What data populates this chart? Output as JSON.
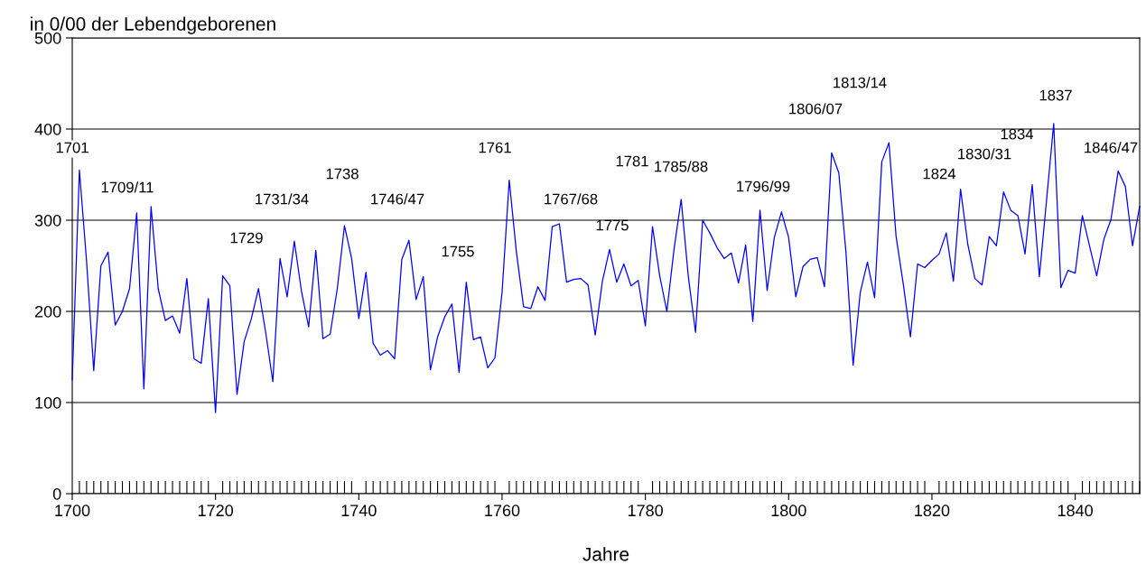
{
  "chart_data": {
    "type": "line",
    "title": "in 0/00 der Lebendgeborenen",
    "xlabel": "Jahre",
    "x": [
      1700,
      1701,
      1702,
      1703,
      1704,
      1705,
      1706,
      1707,
      1708,
      1709,
      1710,
      1711,
      1712,
      1713,
      1714,
      1715,
      1716,
      1717,
      1718,
      1719,
      1720,
      1721,
      1722,
      1723,
      1724,
      1725,
      1726,
      1727,
      1728,
      1729,
      1730,
      1731,
      1732,
      1733,
      1734,
      1735,
      1736,
      1737,
      1738,
      1739,
      1740,
      1741,
      1742,
      1743,
      1744,
      1745,
      1746,
      1747,
      1748,
      1749,
      1750,
      1751,
      1752,
      1753,
      1754,
      1755,
      1756,
      1757,
      1758,
      1759,
      1760,
      1761,
      1762,
      1763,
      1764,
      1765,
      1766,
      1767,
      1768,
      1769,
      1770,
      1771,
      1772,
      1773,
      1774,
      1775,
      1776,
      1777,
      1778,
      1779,
      1780,
      1781,
      1782,
      1783,
      1784,
      1785,
      1786,
      1787,
      1788,
      1789,
      1790,
      1791,
      1792,
      1793,
      1794,
      1795,
      1796,
      1797,
      1798,
      1799,
      1800,
      1801,
      1802,
      1803,
      1804,
      1805,
      1806,
      1807,
      1808,
      1809,
      1810,
      1811,
      1812,
      1813,
      1814,
      1815,
      1816,
      1817,
      1818,
      1819,
      1820,
      1821,
      1822,
      1823,
      1824,
      1825,
      1826,
      1827,
      1828,
      1829,
      1830,
      1831,
      1832,
      1833,
      1834,
      1835,
      1836,
      1837,
      1838,
      1839,
      1840,
      1841,
      1842,
      1843,
      1844,
      1845,
      1846,
      1847,
      1848,
      1849
    ],
    "series": [
      {
        "color": "#0000ff",
        "values": [
          125,
          355,
          255,
          135,
          250,
          265,
          185,
          200,
          225,
          308,
          115,
          315,
          225,
          190,
          195,
          176,
          236,
          148,
          143,
          214,
          89,
          239,
          228,
          109,
          167,
          192,
          225,
          177,
          123,
          258,
          216,
          277,
          222,
          183,
          267,
          170,
          175,
          225,
          294,
          258,
          192,
          243,
          165,
          152,
          157,
          148,
          257,
          278,
          213,
          238,
          136,
          172,
          194,
          208,
          133,
          232,
          169,
          172,
          138,
          149,
          221,
          344,
          265,
          205,
          203,
          227,
          212,
          293,
          296,
          232,
          235,
          236,
          229,
          174,
          233,
          268,
          232,
          252,
          228,
          234,
          184,
          293,
          239,
          200,
          268,
          323,
          238,
          177,
          300,
          286,
          270,
          258,
          264,
          231,
          273,
          189,
          311,
          223,
          281,
          309,
          281,
          216,
          249,
          257,
          259,
          227,
          374,
          352,
          265,
          141,
          221,
          254,
          215,
          364,
          385,
          282,
          230,
          172,
          252,
          248,
          256,
          263,
          286,
          233,
          334,
          274,
          236,
          229,
          282,
          272,
          331,
          311,
          305,
          263,
          339,
          238,
          322,
          406,
          226,
          245,
          242,
          305,
          272,
          239,
          279,
          301,
          354,
          337,
          272,
          315
        ]
      }
    ],
    "xlim": [
      1700,
      1849
    ],
    "xticks": [
      1700,
      1720,
      1740,
      1760,
      1780,
      1800,
      1820,
      1840
    ],
    "ylim": [
      0,
      500
    ],
    "yticks": [
      0,
      100,
      200,
      300,
      400,
      500
    ],
    "grid": "y",
    "legend": false,
    "annotations": [
      "1701",
      "1709/11",
      "1729",
      "1731/34",
      "1738",
      "1746/47",
      "1755",
      "1761",
      "1767/68",
      "1775",
      "1781",
      "1785/88",
      "1796/99",
      "1806/07",
      "1813/14",
      "1824",
      "1830/31",
      "1834",
      "1837",
      "1846/47"
    ]
  }
}
